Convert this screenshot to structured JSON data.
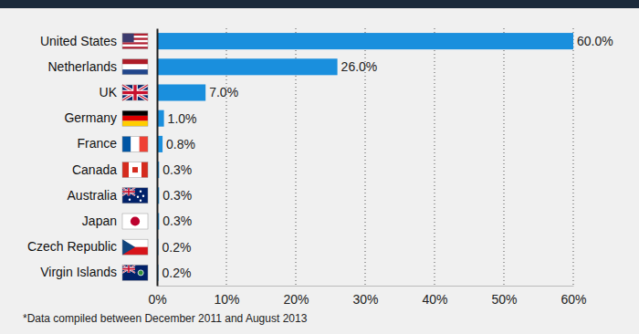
{
  "chart_data": {
    "type": "bar",
    "orientation": "horizontal",
    "categories": [
      "United States",
      "Netherlands",
      "UK",
      "Germany",
      "France",
      "Canada",
      "Australia",
      "Japan",
      "Czech Republic",
      "Virgin Islands"
    ],
    "values": [
      60.0,
      26.0,
      7.0,
      1.0,
      0.8,
      0.3,
      0.3,
      0.3,
      0.2,
      0.2
    ],
    "value_labels": [
      "60.0%",
      "26.0%",
      "7.0%",
      "1.0%",
      "0.8%",
      "0.3%",
      "0.3%",
      "0.3%",
      "0.2%",
      "0.2%"
    ],
    "color": "#1a8fdd",
    "xlim": [
      0,
      60
    ],
    "xticks": [
      {
        "value": 0,
        "label": "0%"
      },
      {
        "value": 10,
        "label": "10%"
      },
      {
        "value": 20,
        "label": "20%"
      },
      {
        "value": 30,
        "label": "30%"
      },
      {
        "value": 40,
        "label": "40%"
      },
      {
        "value": 50,
        "label": "50%"
      },
      {
        "value": 60,
        "label": "60%"
      }
    ],
    "grid": true,
    "data_labels": true,
    "caption": "*Data compiled between December 2011 and August 2013"
  }
}
